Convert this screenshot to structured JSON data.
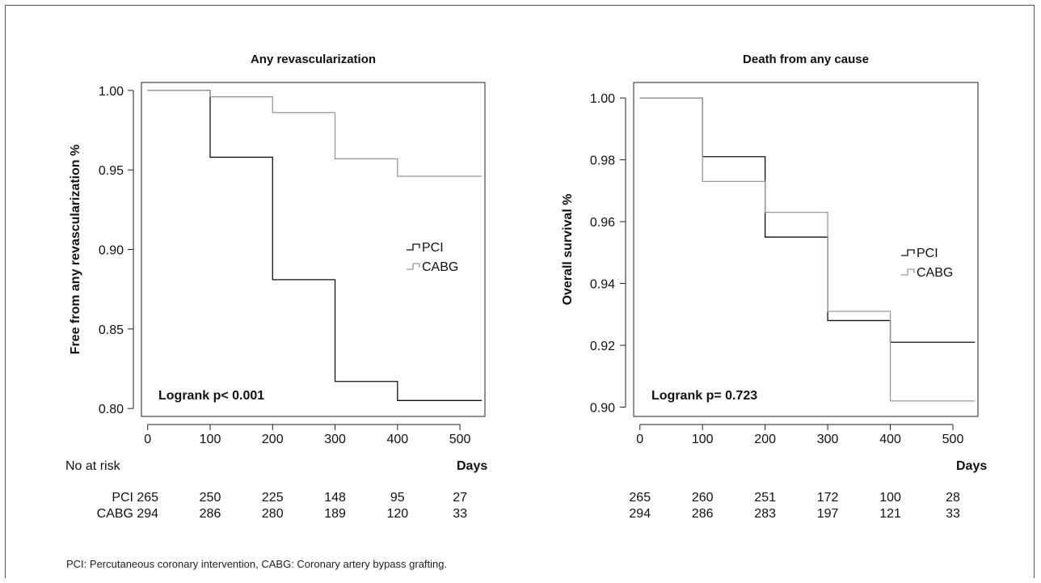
{
  "chart_data": [
    {
      "type": "line",
      "step": true,
      "title": "Any revascularization",
      "xlabel": "Days",
      "ylabel": "Free from any revascularization %",
      "xlim": [
        -10,
        540
      ],
      "ylim": [
        0.795,
        1.005
      ],
      "xticks": [
        "0",
        "100",
        "200",
        "300",
        "400",
        "500"
      ],
      "yticks": [
        "1.00",
        "0.95",
        "0.90",
        "0.85",
        "0.80"
      ],
      "series": [
        {
          "name": "PCI",
          "color": "#111111",
          "x": [
            0,
            100,
            200,
            300,
            400,
            535
          ],
          "y": [
            1.0,
            0.958,
            0.881,
            0.817,
            0.805,
            0.805
          ]
        },
        {
          "name": "CABG",
          "color": "#999999",
          "x": [
            0,
            100,
            200,
            300,
            400,
            535
          ],
          "y": [
            1.0,
            0.996,
            0.986,
            0.957,
            0.946,
            0.946
          ]
        }
      ],
      "legend": "right-middle",
      "annotation": "Logrank p< 0.001",
      "risk_label": "No at risk",
      "risk_rows": [
        {
          "label": "PCI",
          "values": [
            "265",
            "250",
            "225",
            "148",
            "95",
            "27"
          ]
        },
        {
          "label": "CABG",
          "values": [
            "294",
            "286",
            "280",
            "189",
            "120",
            "33"
          ]
        }
      ]
    },
    {
      "type": "line",
      "step": true,
      "title": "Death from any cause",
      "xlabel": "Days",
      "ylabel": "Overall survival %",
      "xlim": [
        -10,
        540
      ],
      "ylim": [
        0.897,
        1.005
      ],
      "xticks": [
        "0",
        "100",
        "200",
        "300",
        "400",
        "500"
      ],
      "yticks": [
        "1.00",
        "0.98",
        "0.96",
        "0.94",
        "0.92",
        "0.90"
      ],
      "series": [
        {
          "name": "PCI",
          "color": "#111111",
          "x": [
            0,
            100,
            200,
            300,
            400,
            535
          ],
          "y": [
            1.0,
            0.981,
            0.955,
            0.928,
            0.921,
            0.921
          ]
        },
        {
          "name": "CABG",
          "color": "#999999",
          "x": [
            0,
            100,
            200,
            300,
            400,
            535
          ],
          "y": [
            1.0,
            0.973,
            0.963,
            0.931,
            0.902,
            0.902
          ]
        }
      ],
      "legend": "right-middle",
      "annotation": "Logrank p= 0.723",
      "risk_label": "",
      "risk_rows": [
        {
          "label": "",
          "values": [
            "265",
            "260",
            "251",
            "172",
            "100",
            "28"
          ]
        },
        {
          "label": "",
          "values": [
            "294",
            "286",
            "283",
            "197",
            "121",
            "33"
          ]
        }
      ]
    }
  ],
  "footnote": "PCI: Percutaneous coronary intervention, CABG: Coronary artery bypass grafting."
}
